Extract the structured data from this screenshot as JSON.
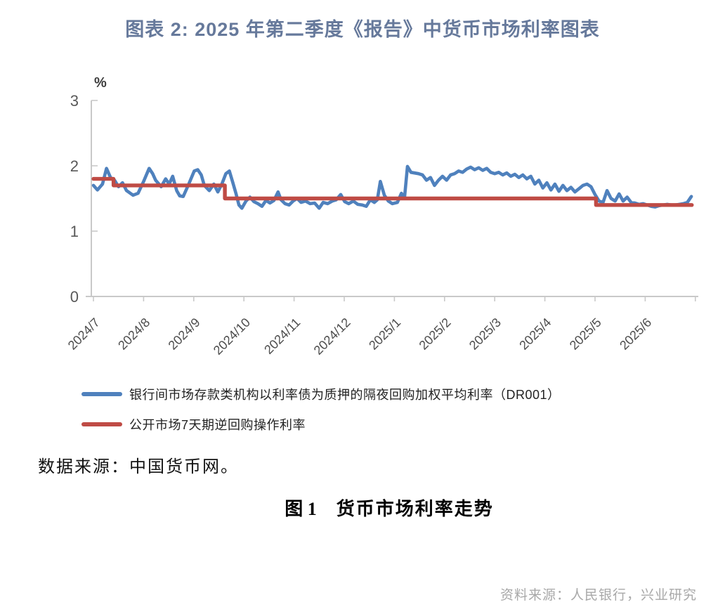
{
  "page": {
    "title": "图表 2: 2025 年第二季度《报告》中货币市场利率图表",
    "title_color": "#66799b",
    "data_note": "数据来源：中国货币网。",
    "caption_prefix": "图 1",
    "caption_text": "货币市场利率走势",
    "footer_source": "资料来源：人民银行，兴业研究"
  },
  "legend": [
    {
      "label": "银行间市场存款类机构以利率债为质押的隔夜回购加权平均利率（DR001）",
      "color": "#4f81bd"
    },
    {
      "label": "公开市场7天期逆回购操作利率",
      "color": "#bf4b45"
    }
  ],
  "chart_data": {
    "type": "line",
    "title": "",
    "unit_label": "%",
    "xlabel": "",
    "ylabel": "%",
    "ylim": [
      0,
      3
    ],
    "y_ticks": [
      0,
      1,
      2,
      3
    ],
    "grid": false,
    "legend_position": "bottom-left",
    "axis_color": "#c9c9c9",
    "tick_label_color": "#595959",
    "x_labels": [
      "2024/7",
      "2024/8",
      "2024/9",
      "2024/10",
      "2024/11",
      "2024/12",
      "2025/1",
      "2025/2",
      "2025/3",
      "2025/4",
      "2025/5",
      "2025/6"
    ],
    "x_domain_months": [
      0,
      12
    ],
    "series": [
      {
        "name": "银行间市场存款类机构以利率债为质押的隔夜回购加权平均利率（DR001）",
        "color": "#4f81bd",
        "points": [
          [
            0.0,
            1.7
          ],
          [
            0.08,
            1.63
          ],
          [
            0.18,
            1.72
          ],
          [
            0.26,
            1.96
          ],
          [
            0.34,
            1.82
          ],
          [
            0.42,
            1.78
          ],
          [
            0.5,
            1.68
          ],
          [
            0.58,
            1.74
          ],
          [
            0.66,
            1.62
          ],
          [
            0.79,
            1.55
          ],
          [
            0.89,
            1.58
          ],
          [
            1.0,
            1.76
          ],
          [
            1.11,
            1.96
          ],
          [
            1.18,
            1.88
          ],
          [
            1.24,
            1.78
          ],
          [
            1.35,
            1.68
          ],
          [
            1.44,
            1.8
          ],
          [
            1.51,
            1.72
          ],
          [
            1.58,
            1.84
          ],
          [
            1.66,
            1.62
          ],
          [
            1.72,
            1.54
          ],
          [
            1.79,
            1.53
          ],
          [
            1.9,
            1.72
          ],
          [
            2.01,
            1.92
          ],
          [
            2.08,
            1.94
          ],
          [
            2.15,
            1.86
          ],
          [
            2.21,
            1.7
          ],
          [
            2.31,
            1.62
          ],
          [
            2.4,
            1.72
          ],
          [
            2.48,
            1.6
          ],
          [
            2.56,
            1.72
          ],
          [
            2.64,
            1.88
          ],
          [
            2.71,
            1.92
          ],
          [
            2.78,
            1.74
          ],
          [
            2.84,
            1.58
          ],
          [
            2.9,
            1.4
          ],
          [
            2.96,
            1.35
          ],
          [
            3.04,
            1.46
          ],
          [
            3.12,
            1.52
          ],
          [
            3.2,
            1.45
          ],
          [
            3.28,
            1.42
          ],
          [
            3.36,
            1.38
          ],
          [
            3.44,
            1.47
          ],
          [
            3.52,
            1.43
          ],
          [
            3.6,
            1.47
          ],
          [
            3.68,
            1.6
          ],
          [
            3.74,
            1.48
          ],
          [
            3.82,
            1.42
          ],
          [
            3.9,
            1.4
          ],
          [
            3.98,
            1.46
          ],
          [
            4.06,
            1.5
          ],
          [
            4.14,
            1.44
          ],
          [
            4.23,
            1.46
          ],
          [
            4.32,
            1.42
          ],
          [
            4.41,
            1.43
          ],
          [
            4.5,
            1.35
          ],
          [
            4.58,
            1.44
          ],
          [
            4.67,
            1.42
          ],
          [
            4.76,
            1.46
          ],
          [
            4.84,
            1.48
          ],
          [
            4.93,
            1.56
          ],
          [
            5.01,
            1.45
          ],
          [
            5.09,
            1.42
          ],
          [
            5.18,
            1.46
          ],
          [
            5.27,
            1.41
          ],
          [
            5.36,
            1.4
          ],
          [
            5.44,
            1.38
          ],
          [
            5.52,
            1.48
          ],
          [
            5.6,
            1.44
          ],
          [
            5.66,
            1.48
          ],
          [
            5.72,
            1.76
          ],
          [
            5.8,
            1.55
          ],
          [
            5.88,
            1.46
          ],
          [
            5.96,
            1.42
          ],
          [
            6.06,
            1.44
          ],
          [
            6.14,
            1.58
          ],
          [
            6.2,
            1.5
          ],
          [
            6.26,
            1.99
          ],
          [
            6.33,
            1.9
          ],
          [
            6.4,
            1.89
          ],
          [
            6.48,
            1.88
          ],
          [
            6.56,
            1.86
          ],
          [
            6.64,
            1.78
          ],
          [
            6.72,
            1.82
          ],
          [
            6.8,
            1.7
          ],
          [
            6.88,
            1.78
          ],
          [
            6.96,
            1.84
          ],
          [
            7.04,
            1.78
          ],
          [
            7.12,
            1.86
          ],
          [
            7.2,
            1.88
          ],
          [
            7.28,
            1.92
          ],
          [
            7.36,
            1.9
          ],
          [
            7.44,
            1.95
          ],
          [
            7.52,
            1.98
          ],
          [
            7.6,
            1.94
          ],
          [
            7.68,
            1.97
          ],
          [
            7.76,
            1.93
          ],
          [
            7.84,
            1.96
          ],
          [
            7.92,
            1.9
          ],
          [
            8.0,
            1.88
          ],
          [
            8.08,
            1.9
          ],
          [
            8.16,
            1.86
          ],
          [
            8.24,
            1.89
          ],
          [
            8.32,
            1.84
          ],
          [
            8.4,
            1.87
          ],
          [
            8.48,
            1.82
          ],
          [
            8.56,
            1.86
          ],
          [
            8.64,
            1.8
          ],
          [
            8.72,
            1.84
          ],
          [
            8.8,
            1.72
          ],
          [
            8.88,
            1.78
          ],
          [
            8.96,
            1.66
          ],
          [
            9.04,
            1.74
          ],
          [
            9.12,
            1.63
          ],
          [
            9.2,
            1.72
          ],
          [
            9.28,
            1.61
          ],
          [
            9.36,
            1.7
          ],
          [
            9.44,
            1.62
          ],
          [
            9.52,
            1.67
          ],
          [
            9.6,
            1.6
          ],
          [
            9.68,
            1.65
          ],
          [
            9.76,
            1.7
          ],
          [
            9.84,
            1.72
          ],
          [
            9.92,
            1.68
          ],
          [
            10.0,
            1.56
          ],
          [
            10.08,
            1.46
          ],
          [
            10.16,
            1.44
          ],
          [
            10.24,
            1.62
          ],
          [
            10.32,
            1.5
          ],
          [
            10.4,
            1.46
          ],
          [
            10.48,
            1.57
          ],
          [
            10.56,
            1.46
          ],
          [
            10.64,
            1.52
          ],
          [
            10.72,
            1.44
          ],
          [
            10.8,
            1.43
          ],
          [
            10.88,
            1.41
          ],
          [
            10.96,
            1.42
          ],
          [
            11.04,
            1.4
          ],
          [
            11.12,
            1.38
          ],
          [
            11.2,
            1.37
          ],
          [
            11.28,
            1.39
          ],
          [
            11.36,
            1.4
          ],
          [
            11.44,
            1.41
          ],
          [
            11.52,
            1.4
          ],
          [
            11.6,
            1.4
          ],
          [
            11.68,
            1.41
          ],
          [
            11.76,
            1.42
          ],
          [
            11.84,
            1.44
          ],
          [
            11.92,
            1.53
          ]
        ]
      },
      {
        "name": "公开市场7天期逆回购操作利率",
        "color": "#bf4b45",
        "step": true,
        "points": [
          [
            0.0,
            1.8
          ],
          [
            0.4,
            1.8
          ],
          [
            0.4,
            1.7
          ],
          [
            2.62,
            1.7
          ],
          [
            2.62,
            1.5
          ],
          [
            10.02,
            1.5
          ],
          [
            10.02,
            1.4
          ],
          [
            11.93,
            1.4
          ]
        ]
      }
    ]
  }
}
